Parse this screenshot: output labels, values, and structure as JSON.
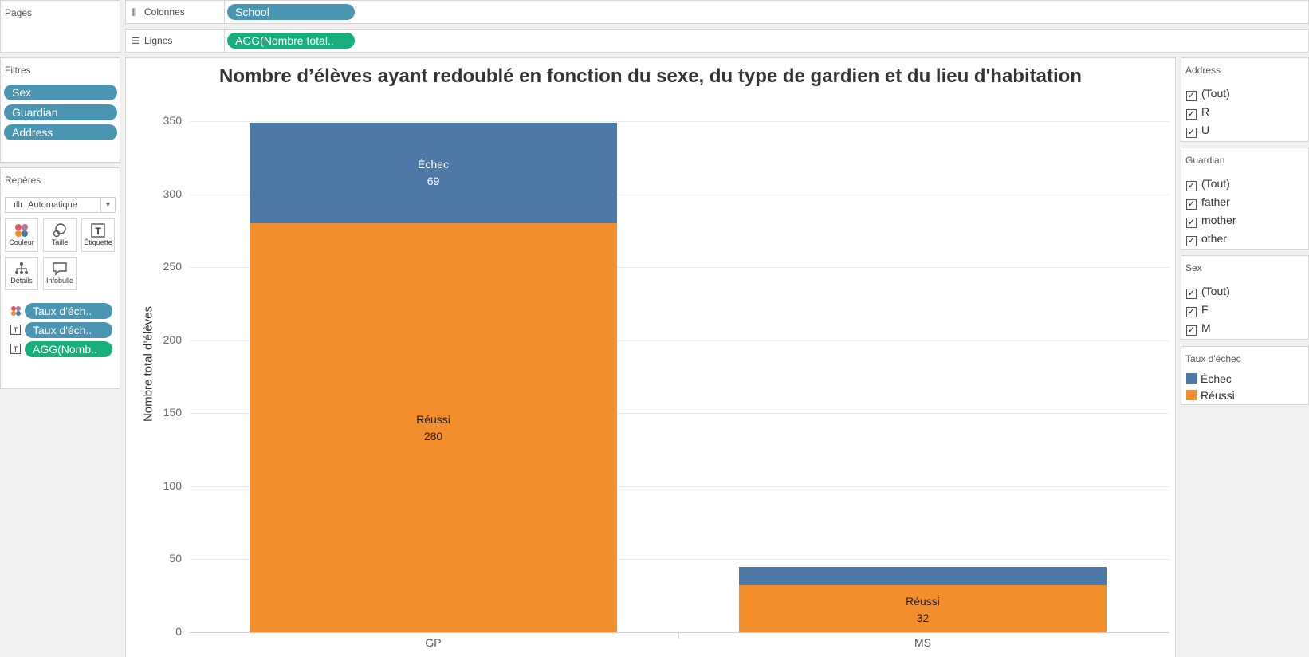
{
  "pages_panel": {
    "title": "Pages"
  },
  "columns_shelf": {
    "label": "Colonnes",
    "icon": "columns-icon",
    "pill": "School"
  },
  "rows_shelf": {
    "label": "Lignes",
    "icon": "rows-icon",
    "pill": "AGG(Nombre total.."
  },
  "filters_panel": {
    "title": "Filtres",
    "pills": [
      "Sex",
      "Guardian",
      "Address"
    ]
  },
  "marks_panel": {
    "title": "Repères",
    "mark_type": "Automatique",
    "buttons": [
      {
        "label": "Couleur",
        "icon": "color-icon"
      },
      {
        "label": "Taille",
        "icon": "size-icon"
      },
      {
        "label": "Étiquette",
        "icon": "label-icon"
      },
      {
        "label": "Détails",
        "icon": "detail-icon"
      },
      {
        "label": "Infobulle",
        "icon": "tooltip-icon"
      }
    ],
    "fields": [
      {
        "icon": "color-dots-icon",
        "label": "Taux d'éch..",
        "color": "#4a96b2"
      },
      {
        "icon": "text-icon",
        "label": "Taux d'éch..",
        "color": "#4a96b2"
      },
      {
        "icon": "text-icon",
        "label": "AGG(Nomb..",
        "color": "#17b07c"
      }
    ]
  },
  "address_filter": {
    "title": "Address",
    "items": [
      "(Tout)",
      "R",
      "U"
    ]
  },
  "guardian_filter": {
    "title": "Guardian",
    "items": [
      "(Tout)",
      "father",
      "mother",
      "other"
    ]
  },
  "sex_filter": {
    "title": "Sex",
    "items": [
      "(Tout)",
      "F",
      "M"
    ]
  },
  "legend": {
    "title": "Taux d'échec",
    "items": [
      {
        "label": "Échec",
        "color": "#4e79a7"
      },
      {
        "label": "Réussi",
        "color": "#f28e2b"
      }
    ]
  },
  "chart_data": {
    "type": "bar",
    "stacked": true,
    "title": "Nombre d’élèves ayant redoublé en fonction du sexe, du type de gardien et du lieu d'habitation",
    "xlabel": "",
    "ylabel": "Nombre total d’élèves",
    "categories": [
      "GP",
      "MS"
    ],
    "series": [
      {
        "name": "Réussi",
        "values": [
          280,
          32
        ],
        "color": "#f28e2b",
        "labels": [
          "Réussi",
          "Réussi"
        ]
      },
      {
        "name": "Échec",
        "values": [
          69,
          13
        ],
        "color": "#4e79a7",
        "labels": [
          "Échec",
          ""
        ]
      }
    ],
    "value_labels_shown": {
      "GP": {
        "Échec": "69",
        "Réussi": "280"
      },
      "MS": {
        "Réussi": "32"
      }
    },
    "ylim": [
      0,
      350
    ],
    "yticks": [
      0,
      50,
      100,
      150,
      200,
      250,
      300,
      350
    ],
    "grid": true
  }
}
